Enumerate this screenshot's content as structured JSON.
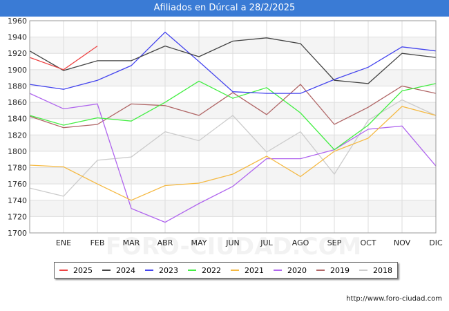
{
  "title": "Afiliados en Dúrcal a 28/2/2025",
  "source": "http://www.foro-ciudad.com",
  "watermark": "FORO-CIUDAD.COM",
  "chart_data": {
    "type": "line",
    "categories": [
      "",
      "ENE",
      "FEB",
      "MAR",
      "ABR",
      "MAY",
      "JUN",
      "JUL",
      "AGO",
      "SEP",
      "OCT",
      "NOV",
      "DIC"
    ],
    "ylim": [
      1700,
      1960
    ],
    "yticks": [
      1700,
      1720,
      1740,
      1760,
      1780,
      1800,
      1820,
      1840,
      1860,
      1880,
      1900,
      1920,
      1940,
      1960
    ],
    "grid": true,
    "legend_position": "bottom",
    "series": [
      {
        "name": "2025",
        "color": "#ee4444",
        "values": [
          1915,
          1900,
          1929,
          null,
          null,
          null,
          null,
          null,
          null,
          null,
          null,
          null,
          null
        ]
      },
      {
        "name": "2024",
        "color": "#444444",
        "values": [
          1923,
          1899,
          1911,
          1911,
          1929,
          1916,
          1935,
          1939,
          1932,
          1887,
          1883,
          1920,
          1915
        ]
      },
      {
        "name": "2023",
        "color": "#4444ee",
        "values": [
          1882,
          1876,
          1887,
          1905,
          1946,
          1910,
          1873,
          1871,
          1871,
          1888,
          1903,
          1928,
          1923
        ]
      },
      {
        "name": "2022",
        "color": "#44ee44",
        "values": [
          1844,
          1832,
          1841,
          1837,
          1860,
          1886,
          1865,
          1878,
          1847,
          1802,
          1832,
          1874,
          1883
        ]
      },
      {
        "name": "2021",
        "color": "#f5b942",
        "values": [
          1783,
          1781,
          1760,
          1740,
          1758,
          1761,
          1772,
          1794,
          1769,
          1800,
          1816,
          1855,
          1844
        ]
      },
      {
        "name": "2020",
        "color": "#b066ee",
        "values": [
          1871,
          1852,
          1858,
          1730,
          1713,
          1736,
          1757,
          1791,
          1791,
          1802,
          1827,
          1831,
          1782
        ]
      },
      {
        "name": "2019",
        "color": "#b06666",
        "values": [
          1843,
          1829,
          1833,
          1858,
          1856,
          1844,
          1872,
          1845,
          1882,
          1833,
          1854,
          1880,
          1871
        ]
      },
      {
        "name": "2018",
        "color": "#cccccc",
        "values": [
          1755,
          1745,
          1789,
          1793,
          1824,
          1813,
          1844,
          1799,
          1824,
          1772,
          1838,
          1863,
          1844
        ]
      }
    ]
  }
}
